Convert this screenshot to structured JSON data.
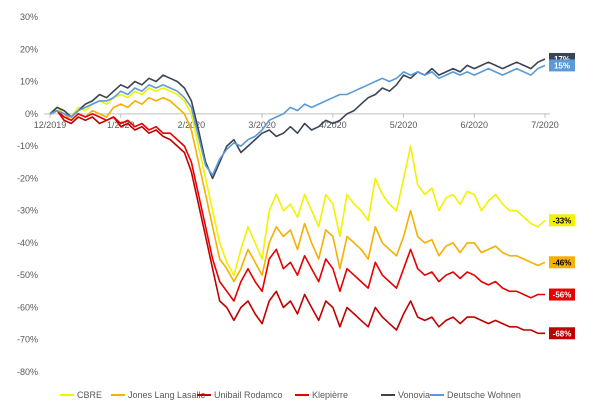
{
  "chart_data": {
    "type": "line",
    "title": "",
    "xlabel": "",
    "ylabel": "",
    "ylim": [
      -80,
      30
    ],
    "y_ticks": [
      "30%",
      "20%",
      "10%",
      "0%",
      "-10%",
      "-20%",
      "-30%",
      "-40%",
      "-50%",
      "-60%",
      "-70%",
      "-80%"
    ],
    "x_ticks": [
      "12/2019",
      "1/2020",
      "2/2020",
      "3/2020",
      "4/2020",
      "5/2020",
      "6/2020",
      "7/2020"
    ],
    "x_tick_values": [
      0,
      1,
      2,
      3,
      4,
      5,
      6,
      7
    ],
    "grid": false,
    "legend_position": "bottom",
    "x": [
      0,
      0.1,
      0.2,
      0.3,
      0.4,
      0.5,
      0.6,
      0.7,
      0.8,
      0.9,
      1.0,
      1.1,
      1.2,
      1.3,
      1.4,
      1.5,
      1.6,
      1.7,
      1.8,
      1.9,
      2.0,
      2.1,
      2.2,
      2.3,
      2.4,
      2.5,
      2.6,
      2.7,
      2.8,
      2.9,
      3.0,
      3.1,
      3.2,
      3.3,
      3.4,
      3.5,
      3.6,
      3.7,
      3.8,
      3.9,
      4.0,
      4.1,
      4.2,
      4.3,
      4.4,
      4.5,
      4.6,
      4.7,
      4.8,
      4.9,
      5.0,
      5.1,
      5.2,
      5.3,
      5.4,
      5.5,
      5.6,
      5.7,
      5.8,
      5.9,
      6.0,
      6.1,
      6.2,
      6.3,
      6.4,
      6.5,
      6.6,
      6.7,
      6.8,
      6.9,
      7.0
    ],
    "series": [
      {
        "name": "CBRE",
        "color": "#f2f200",
        "end_label": "-33%",
        "values": [
          0,
          2,
          0,
          -1,
          2,
          1,
          3,
          4,
          3,
          5,
          6,
          5,
          7,
          6,
          8,
          7,
          8,
          7,
          6,
          4,
          0,
          -10,
          -20,
          -30,
          -40,
          -46,
          -50,
          -42,
          -35,
          -40,
          -45,
          -30,
          -25,
          -30,
          -28,
          -32,
          -25,
          -30,
          -35,
          -25,
          -28,
          -38,
          -25,
          -28,
          -30,
          -33,
          -20,
          -25,
          -28,
          -30,
          -20,
          -10,
          -22,
          -25,
          -23,
          -30,
          -26,
          -25,
          -28,
          -24,
          -25,
          -30,
          -27,
          -25,
          -28,
          -30,
          -30,
          -32,
          -34,
          -35,
          -33
        ]
      },
      {
        "name": "Jones Lang Lasalle",
        "color": "#f5b000",
        "end_label": "-46%",
        "values": [
          0,
          1,
          0,
          -2,
          0,
          -1,
          1,
          0,
          -1,
          2,
          3,
          2,
          4,
          3,
          5,
          4,
          5,
          4,
          2,
          0,
          -5,
          -15,
          -25,
          -35,
          -45,
          -48,
          -52,
          -48,
          -42,
          -46,
          -50,
          -40,
          -35,
          -38,
          -36,
          -42,
          -34,
          -40,
          -45,
          -36,
          -38,
          -48,
          -38,
          -40,
          -42,
          -45,
          -35,
          -40,
          -42,
          -44,
          -38,
          -30,
          -38,
          -40,
          -39,
          -44,
          -41,
          -40,
          -43,
          -40,
          -40,
          -43,
          -42,
          -41,
          -43,
          -44,
          -44,
          -45,
          -46,
          -47,
          -46
        ]
      },
      {
        "name": "Unibail Rodamco",
        "color": "#c00000",
        "end_label": "-68%",
        "values": [
          0,
          1,
          -2,
          -3,
          -1,
          -2,
          -1,
          -3,
          -2,
          -1,
          -4,
          -3,
          -5,
          -4,
          -6,
          -5,
          -7,
          -8,
          -10,
          -12,
          -18,
          -28,
          -38,
          -48,
          -58,
          -60,
          -64,
          -60,
          -58,
          -62,
          -65,
          -58,
          -55,
          -60,
          -58,
          -62,
          -56,
          -60,
          -64,
          -58,
          -60,
          -66,
          -60,
          -62,
          -64,
          -66,
          -60,
          -63,
          -65,
          -67,
          -62,
          -58,
          -63,
          -64,
          -63,
          -66,
          -64,
          -63,
          -65,
          -63,
          -63,
          -64,
          -65,
          -64,
          -65,
          -66,
          -66,
          -67,
          -67,
          -68,
          -68
        ]
      },
      {
        "name": "Klepièrre",
        "color": "#e60000",
        "end_label": "-56%",
        "values": [
          0,
          1,
          -1,
          -2,
          0,
          -1,
          0,
          -1,
          -2,
          -1,
          -3,
          -2,
          -4,
          -3,
          -5,
          -4,
          -6,
          -6,
          -8,
          -10,
          -15,
          -25,
          -35,
          -45,
          -52,
          -55,
          -58,
          -52,
          -48,
          -52,
          -55,
          -45,
          -42,
          -48,
          -46,
          -50,
          -44,
          -48,
          -52,
          -45,
          -48,
          -55,
          -48,
          -50,
          -52,
          -54,
          -46,
          -50,
          -52,
          -54,
          -48,
          -42,
          -48,
          -50,
          -49,
          -52,
          -50,
          -49,
          -51,
          -49,
          -50,
          -52,
          -53,
          -52,
          -54,
          -55,
          -55,
          -56,
          -57,
          -56,
          -56
        ]
      },
      {
        "name": "Vonovia",
        "color": "#3b4455",
        "end_label": "17%",
        "values": [
          0,
          2,
          1,
          -1,
          1,
          3,
          4,
          6,
          5,
          7,
          9,
          8,
          10,
          9,
          11,
          10,
          12,
          11,
          10,
          8,
          4,
          -5,
          -15,
          -20,
          -15,
          -10,
          -8,
          -12,
          -10,
          -8,
          -6,
          -5,
          -7,
          -6,
          -4,
          -6,
          -3,
          -5,
          -4,
          -2,
          -3,
          -2,
          0,
          1,
          3,
          5,
          6,
          8,
          7,
          9,
          12,
          11,
          13,
          12,
          14,
          12,
          13,
          14,
          13,
          15,
          14,
          15,
          16,
          15,
          14,
          15,
          16,
          15,
          14,
          16,
          17
        ]
      },
      {
        "name": "Deutsche Wohnen",
        "color": "#5b9bd5",
        "end_label": "15%",
        "values": [
          0,
          1,
          0,
          -1,
          1,
          2,
          3,
          4,
          4,
          5,
          7,
          6,
          8,
          7,
          9,
          8,
          9,
          8,
          7,
          5,
          2,
          -7,
          -16,
          -19,
          -14,
          -11,
          -9,
          -10,
          -8,
          -7,
          -5,
          -2,
          -1,
          0,
          2,
          1,
          3,
          2,
          3,
          4,
          5,
          6,
          6,
          7,
          8,
          9,
          10,
          11,
          10,
          11,
          13,
          12,
          13,
          12,
          13,
          11,
          12,
          13,
          12,
          13,
          12,
          13,
          14,
          13,
          12,
          13,
          14,
          13,
          12,
          14,
          15
        ]
      }
    ]
  }
}
